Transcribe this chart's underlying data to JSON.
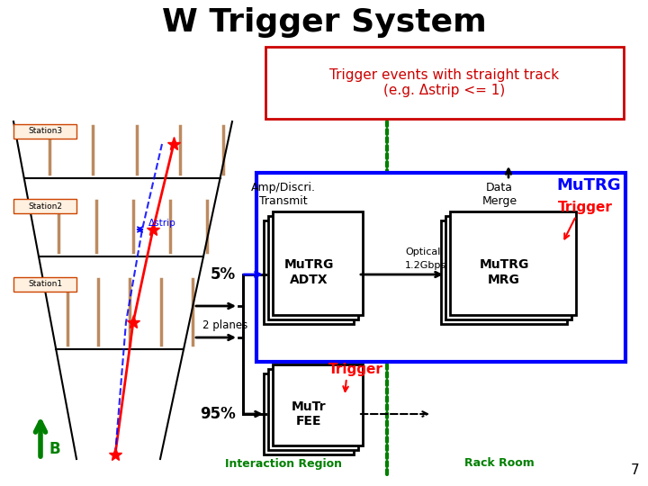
{
  "title": "W Trigger System",
  "title_fontsize": 26,
  "background_color": "#ffffff",
  "trigger_box_text": "Trigger events with straight track\n(e.g. Δstrip <= 1)",
  "trigger_box_color": "#cc0000",
  "page_number": "7",
  "stations": [
    "Station3",
    "Station2",
    "Station1"
  ],
  "labels": {
    "amp_discri": "Amp/Discri.\nTransmit",
    "mutrg_adtx": "MuTRG\nADTX",
    "data_merge": "Data\nMerge",
    "mutrg_mrg": "MuTRG\nMRG",
    "mutr_fee": "MuTr\nFEE",
    "optical": "Optical",
    "gbps": "1.2Gbps",
    "pct5": "5%",
    "pct95": "95%",
    "two_planes": "2 planes",
    "mutrg": "MuTRG",
    "trigger": "Trigger",
    "interaction": "Interaction Region",
    "rack_room": "Rack Room",
    "dstrip": "Δstrip",
    "B": "B"
  }
}
